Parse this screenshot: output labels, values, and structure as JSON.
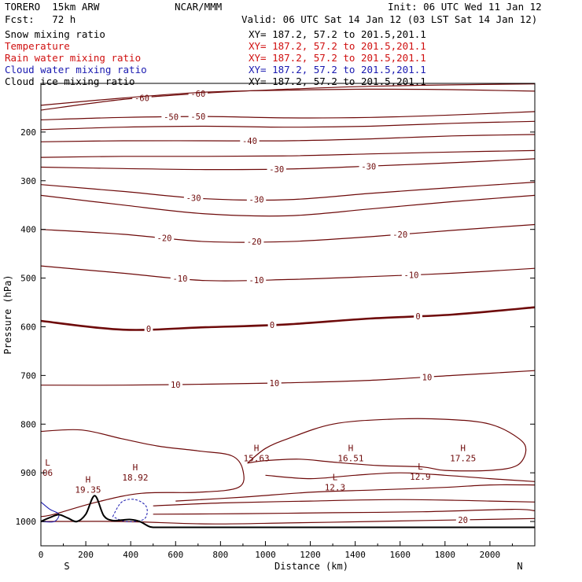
{
  "header": {
    "model": "TORERO  15km ARW",
    "org": "NCAR/MMM",
    "init": "Init: 06 UTC Wed 11 Jan 12",
    "fcst": "Fcst:   72 h",
    "valid": "Valid: 06 UTC Sat 14 Jan 12 (03 LST Sat 14 Jan 12)"
  },
  "fields": [
    {
      "name": "Snow mixing ratio",
      "xy": "XY= 187.2, 57.2 to 201.5,201.1",
      "color": "#000000"
    },
    {
      "name": "Temperature",
      "xy": "XY= 187.2, 57.2 to 201.5,201.1",
      "color": "#d01010"
    },
    {
      "name": "Rain water mixing ratio",
      "xy": "XY= 187.2, 57.2 to 201.5,201.1",
      "color": "#d01010"
    },
    {
      "name": "Cloud water mixing ratio",
      "xy": "XY= 187.2, 57.2 to 201.5,201.1",
      "color": "#1a1ab0"
    },
    {
      "name": "Cloud ice mixing ratio",
      "xy": "XY= 187.2, 57.2 to 201.5,201.1",
      "color": "#000000"
    }
  ],
  "chart_data": {
    "type": "contour-cross-section",
    "xlabel": "Distance (km)",
    "ylabel": "Pressure (hPa)",
    "xlim": [
      0,
      2200
    ],
    "ylim": [
      1050,
      100
    ],
    "x_ticks": [
      0,
      200,
      400,
      600,
      800,
      1000,
      1200,
      1400,
      1600,
      1800,
      2000
    ],
    "y_ticks": [
      200,
      300,
      400,
      500,
      600,
      700,
      800,
      900,
      1000
    ],
    "end_labels": {
      "left": "S",
      "right": "N"
    },
    "temperature_contours": [
      {
        "level": -60,
        "pressure": [
          155,
          133,
          120,
          112,
          106,
          103,
          101
        ],
        "labels": [
          {
            "text": "-60",
            "x": 450
          },
          {
            "text": "-60",
            "x": 700
          }
        ]
      },
      {
        "level": -60,
        "pressure": [
          145,
          130,
          118,
          114,
          112,
          113,
          116
        ],
        "labels": []
      },
      {
        "level": -50,
        "pressure": [
          175,
          170,
          168,
          171,
          170,
          165,
          158
        ],
        "labels": [
          {
            "text": "-50",
            "x": 580
          },
          {
            "text": "-50",
            "x": 700
          }
        ]
      },
      {
        "level": -50,
        "pressure": [
          195,
          190,
          188,
          190,
          188,
          182,
          178
        ],
        "labels": []
      },
      {
        "level": -40,
        "pressure": [
          220,
          218,
          218,
          218,
          214,
          208,
          205
        ],
        "labels": [
          {
            "text": "-40",
            "x": 930
          }
        ]
      },
      {
        "level": -40,
        "pressure": [
          252,
          250,
          250,
          249,
          245,
          241,
          238
        ],
        "labels": []
      },
      {
        "level": -30,
        "pressure": [
          272,
          275,
          277,
          276,
          270,
          263,
          255
        ],
        "labels": [
          {
            "text": "-30",
            "x": 1050
          },
          {
            "text": "-30",
            "x": 1460
          }
        ]
      },
      {
        "level": -30,
        "pressure": [
          308,
          322,
          337,
          339,
          326,
          314,
          303
        ],
        "labels": [
          {
            "text": "-30",
            "x": 680
          },
          {
            "text": "-30",
            "x": 960
          }
        ]
      },
      {
        "level": -30,
        "pressure": [
          330,
          350,
          368,
          372,
          358,
          343,
          330
        ],
        "labels": []
      },
      {
        "level": -20,
        "pressure": [
          400,
          410,
          425,
          425,
          415,
          402,
          390
        ],
        "labels": [
          {
            "text": "-20",
            "x": 550
          },
          {
            "text": "-20",
            "x": 950
          },
          {
            "text": "-20",
            "x": 1600
          }
        ]
      },
      {
        "level": -10,
        "pressure": [
          475,
          490,
          505,
          503,
          497,
          490,
          480
        ],
        "labels": [
          {
            "text": "-10",
            "x": 620
          },
          {
            "text": "-10",
            "x": 960
          },
          {
            "text": "-10",
            "x": 1650
          }
        ]
      },
      {
        "level": 0,
        "pressure": [
          588,
          606,
          601,
          595,
          583,
          575,
          560
        ],
        "labels": [
          {
            "text": "0",
            "x": 480
          },
          {
            "text": "0",
            "x": 1030
          },
          {
            "text": "0",
            "x": 1680
          }
        ]
      },
      {
        "level": 10,
        "pressure": [
          720,
          720,
          718,
          715,
          710,
          700,
          690
        ],
        "labels": [
          {
            "text": "10",
            "x": 600
          },
          {
            "text": "10",
            "x": 1040
          },
          {
            "text": "10",
            "x": 1720
          }
        ]
      },
      {
        "level": 20,
        "pressure": [
          1000,
          1000,
          1005,
          1003,
          1000,
          997,
          994
        ],
        "labels": [
          {
            "text": "20",
            "x": 1880
          }
        ]
      }
    ],
    "extrema": [
      {
        "type": "H",
        "value": "19.35",
        "x": 210,
        "p": 920
      },
      {
        "type": "H",
        "value": "18.92",
        "x": 420,
        "p": 895
      },
      {
        "type": "H",
        "value": "15.63",
        "x": 960,
        "p": 855
      },
      {
        "type": "H",
        "value": "16.51",
        "x": 1380,
        "p": 855
      },
      {
        "type": "H",
        "value": "17.25",
        "x": 1880,
        "p": 855
      },
      {
        "type": "L",
        "value": "12.3",
        "x": 1310,
        "p": 915
      },
      {
        "type": "L",
        "value": "12.9",
        "x": 1690,
        "p": 893
      },
      {
        "type": "L",
        "value": "06",
        "x": 30,
        "p": 885
      }
    ],
    "terrain_km": [
      0,
      40,
      80,
      120,
      160,
      200,
      240,
      280,
      320,
      360,
      400,
      440,
      480,
      500,
      2200
    ],
    "terrain_hpa": [
      1000,
      992,
      986,
      993,
      1000,
      985,
      947,
      988,
      998,
      997,
      996,
      1000,
      1010,
      1012,
      1012
    ]
  }
}
